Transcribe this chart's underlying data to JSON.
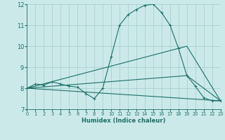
{
  "xlabel": "Humidex (Indice chaleur)",
  "xlim": [
    0,
    23
  ],
  "ylim": [
    7,
    12
  ],
  "yticks": [
    7,
    8,
    9,
    10,
    11,
    12
  ],
  "xticks": [
    0,
    1,
    2,
    3,
    4,
    5,
    6,
    7,
    8,
    9,
    10,
    11,
    12,
    13,
    14,
    15,
    16,
    17,
    18,
    19,
    20,
    21,
    22,
    23
  ],
  "bg_color": "#cce9e9",
  "line_color": "#1a7068",
  "grid_color": "#a0cccc",
  "series": [
    {
      "x": [
        0,
        1,
        2,
        3,
        4,
        5,
        6,
        7,
        8,
        9,
        10,
        11,
        12,
        13,
        14,
        15,
        16,
        17,
        18,
        19,
        20,
        21,
        22,
        23
      ],
      "y": [
        8.0,
        8.2,
        8.15,
        8.3,
        8.2,
        8.1,
        8.05,
        7.75,
        7.5,
        8.0,
        9.5,
        11.0,
        11.5,
        11.75,
        11.95,
        12.0,
        11.6,
        11.0,
        9.9,
        8.6,
        8.1,
        7.55,
        7.4,
        7.4
      ],
      "marker": true
    },
    {
      "x": [
        0,
        23
      ],
      "y": [
        8.0,
        7.4
      ],
      "marker": false
    },
    {
      "x": [
        0,
        19,
        23
      ],
      "y": [
        8.0,
        10.0,
        7.4
      ],
      "marker": false
    },
    {
      "x": [
        0,
        19,
        23
      ],
      "y": [
        8.0,
        8.6,
        7.4
      ],
      "marker": false
    }
  ]
}
